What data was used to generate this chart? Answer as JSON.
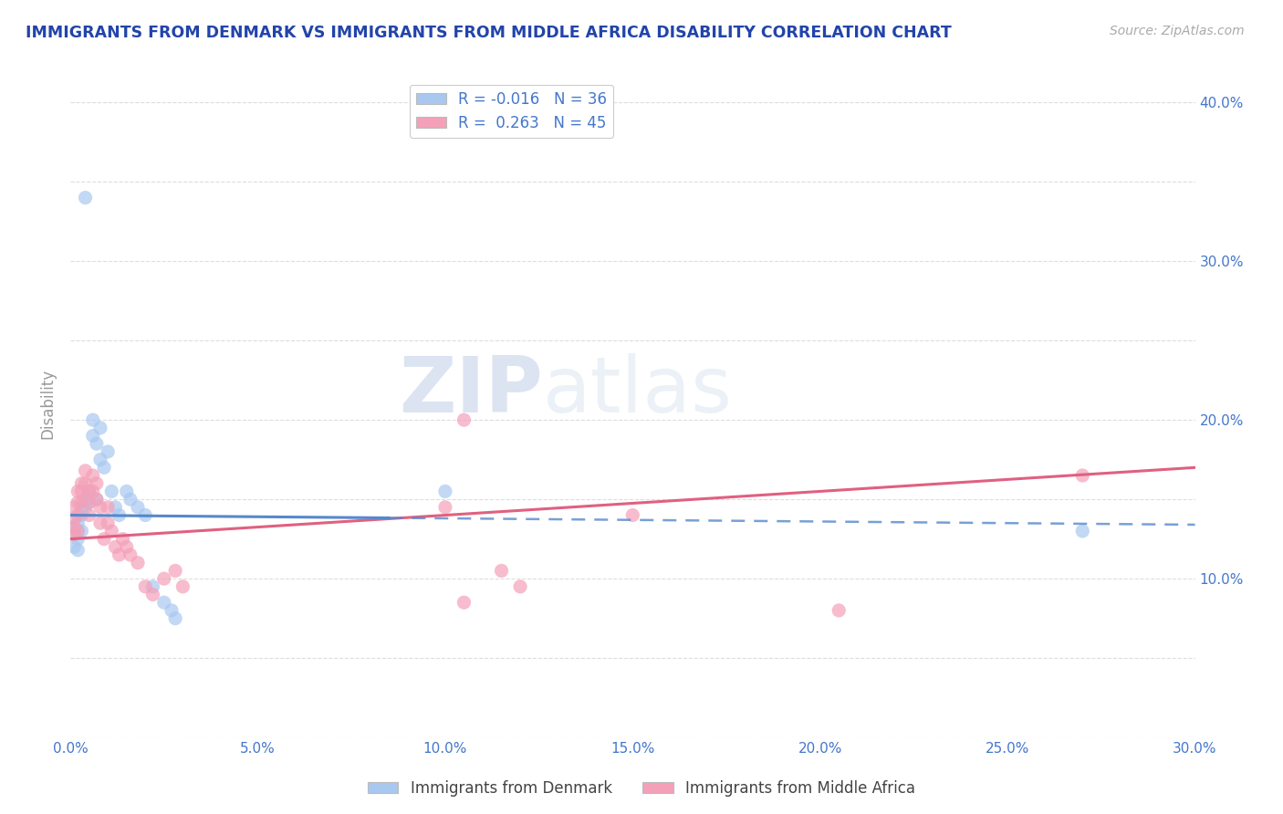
{
  "title": "IMMIGRANTS FROM DENMARK VS IMMIGRANTS FROM MIDDLE AFRICA DISABILITY CORRELATION CHART",
  "source": "Source: ZipAtlas.com",
  "ylabel": "Disability",
  "xlim": [
    0.0,
    0.3
  ],
  "ylim": [
    0.0,
    0.42
  ],
  "xticks": [
    0.0,
    0.05,
    0.1,
    0.15,
    0.2,
    0.25,
    0.3
  ],
  "yticks_right": [
    0.1,
    0.2,
    0.3,
    0.4
  ],
  "ytick_right_labels": [
    "10.0%",
    "20.0%",
    "30.0%",
    "40.0%"
  ],
  "r_denmark": -0.016,
  "n_denmark": 36,
  "r_middle_africa": 0.263,
  "n_middle_africa": 45,
  "color_denmark": "#a8c8f0",
  "color_middle_africa": "#f4a0b8",
  "color_denmark_line": "#5588cc",
  "color_middle_africa_line": "#e06080",
  "watermark_zip": "ZIP",
  "watermark_atlas": "atlas",
  "denmark_scatter_x": [
    0.001,
    0.001,
    0.001,
    0.002,
    0.002,
    0.002,
    0.002,
    0.003,
    0.003,
    0.003,
    0.004,
    0.004,
    0.005,
    0.005,
    0.006,
    0.006,
    0.007,
    0.008,
    0.008,
    0.009,
    0.01,
    0.011,
    0.012,
    0.013,
    0.015,
    0.016,
    0.018,
    0.02,
    0.022,
    0.025,
    0.027,
    0.028,
    0.1,
    0.27,
    0.004,
    0.007
  ],
  "denmark_scatter_y": [
    0.133,
    0.128,
    0.12,
    0.135,
    0.13,
    0.125,
    0.118,
    0.145,
    0.14,
    0.13,
    0.15,
    0.145,
    0.155,
    0.148,
    0.2,
    0.19,
    0.185,
    0.195,
    0.175,
    0.17,
    0.18,
    0.155,
    0.145,
    0.14,
    0.155,
    0.15,
    0.145,
    0.14,
    0.095,
    0.085,
    0.08,
    0.075,
    0.155,
    0.13,
    0.34,
    0.15
  ],
  "middle_africa_scatter_x": [
    0.001,
    0.001,
    0.001,
    0.001,
    0.002,
    0.002,
    0.002,
    0.002,
    0.003,
    0.003,
    0.003,
    0.004,
    0.004,
    0.005,
    0.005,
    0.005,
    0.006,
    0.006,
    0.007,
    0.007,
    0.008,
    0.008,
    0.009,
    0.01,
    0.01,
    0.011,
    0.012,
    0.013,
    0.014,
    0.015,
    0.016,
    0.018,
    0.02,
    0.022,
    0.025,
    0.028,
    0.03,
    0.1,
    0.105,
    0.15,
    0.115,
    0.12,
    0.27,
    0.105,
    0.205
  ],
  "middle_africa_scatter_y": [
    0.145,
    0.138,
    0.132,
    0.128,
    0.155,
    0.148,
    0.14,
    0.13,
    0.16,
    0.155,
    0.148,
    0.168,
    0.16,
    0.155,
    0.148,
    0.14,
    0.165,
    0.155,
    0.16,
    0.15,
    0.145,
    0.135,
    0.125,
    0.145,
    0.135,
    0.13,
    0.12,
    0.115,
    0.125,
    0.12,
    0.115,
    0.11,
    0.095,
    0.09,
    0.1,
    0.105,
    0.095,
    0.145,
    0.2,
    0.14,
    0.105,
    0.095,
    0.165,
    0.085,
    0.08
  ],
  "background_color": "#ffffff",
  "grid_color": "#dddddd",
  "title_color": "#2244aa",
  "axis_label_color": "#999999",
  "tick_label_color": "#4477cc",
  "legend_label_color": "#333333"
}
